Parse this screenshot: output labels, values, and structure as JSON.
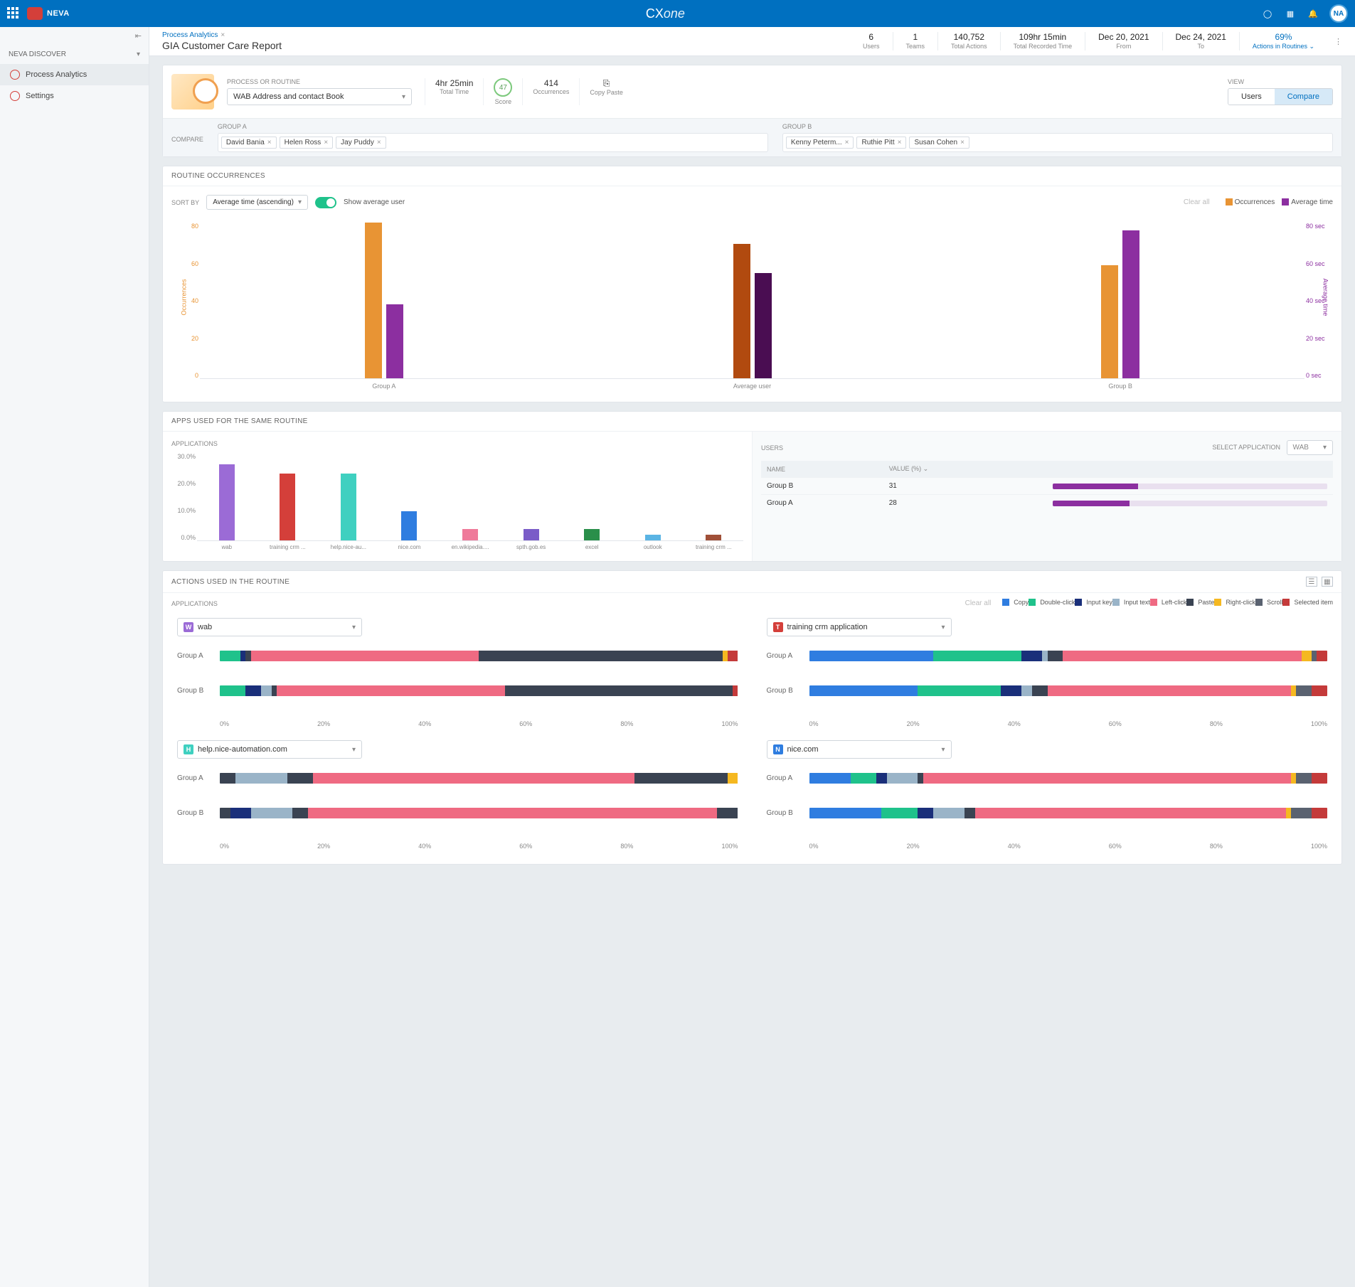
{
  "topbar": {
    "brand": "NEVA",
    "center_a": "CX",
    "center_b": "one",
    "avatar": "NA"
  },
  "sidebar": {
    "section": "NEVA DISCOVER",
    "items": [
      {
        "label": "Process Analytics",
        "active": true
      },
      {
        "label": "Settings",
        "active": false
      }
    ]
  },
  "header": {
    "breadcrumb": "Process Analytics",
    "title": "GIA Customer Care Report",
    "metrics": [
      {
        "val": "6",
        "lbl": "Users"
      },
      {
        "val": "1",
        "lbl": "Teams"
      },
      {
        "val": "140,752",
        "lbl": "Total Actions"
      },
      {
        "val": "109hr 15min",
        "lbl": "Total Recorded Time"
      },
      {
        "val": "Dec 20, 2021",
        "lbl": "From"
      },
      {
        "val": "Dec 24, 2021",
        "lbl": "To"
      },
      {
        "val": "69%",
        "lbl": "Actions in Routines ⌄",
        "link": true
      }
    ]
  },
  "filter": {
    "proc_lbl": "PROCESS OR ROUTINE",
    "proc_val": "WAB Address and contact Book",
    "mini": [
      {
        "v": "4hr 25min",
        "l": "Total Time"
      },
      {
        "v": "47",
        "l": "Score",
        "ring": true
      },
      {
        "v": "414",
        "l": "Occurrences"
      },
      {
        "v": "",
        "l": "Copy Paste",
        "icon": true
      }
    ],
    "view_lbl": "VIEW",
    "view_opts": [
      "Users",
      "Compare"
    ],
    "view_active": 1
  },
  "compare": {
    "lbl": "COMPARE",
    "group_a_lbl": "GROUP A",
    "group_b_lbl": "GROUP B",
    "group_a": [
      "David Bania",
      "Helen Ross",
      "Jay Puddy"
    ],
    "group_b": [
      "Kenny Peterm...",
      "Ruthie Pitt",
      "Susan Cohen"
    ]
  },
  "routine": {
    "title": "ROUTINE OCCURRENCES",
    "sortby_lbl": "SORT BY",
    "sortby_val": "Average time (ascending)",
    "toggle_lbl": "Show average user",
    "clear": "Clear all",
    "legend": [
      {
        "label": "Occurrences",
        "color": "#e89434"
      },
      {
        "label": "Average time",
        "color": "#8c2fa0"
      }
    ],
    "y_left": [
      "80",
      "60",
      "40",
      "20",
      "0"
    ],
    "y_right": [
      "80 sec",
      "60 sec",
      "40 sec",
      "20 sec",
      "0 sec"
    ],
    "y_left_lbl": "Occurrences",
    "y_right_lbl": "Average time",
    "max_occ": 80,
    "max_time": 80,
    "groups": [
      {
        "label": "Group A",
        "occ": 80,
        "time": 38,
        "occ_color": "#e89434",
        "time_color": "#8c2fa0"
      },
      {
        "label": "Average user",
        "occ": 69,
        "time": 54,
        "occ_color": "#b14a0f",
        "time_color": "#4a0d52"
      },
      {
        "label": "Group B",
        "occ": 58,
        "time": 76,
        "occ_color": "#e89434",
        "time_color": "#8c2fa0"
      }
    ]
  },
  "apps": {
    "title": "APPS USED FOR THE SAME ROUTINE",
    "left_lbl": "APPLICATIONS",
    "right_lbl": "USERS",
    "select_lbl": "SELECT APPLICATION",
    "select_val": "wab",
    "y": [
      "30.0%",
      "20.0%",
      "10.0%",
      "0.0%"
    ],
    "ymax": 30,
    "bars": [
      {
        "label": "wab",
        "val": 26,
        "color": "#9b6bd6"
      },
      {
        "label": "training crm ...",
        "val": 23,
        "color": "#d43f3a"
      },
      {
        "label": "help.nice-au...",
        "val": 23,
        "color": "#3fd0c0"
      },
      {
        "label": "nice.com",
        "val": 10,
        "color": "#2f7de0"
      },
      {
        "label": "en.wikipedia....",
        "val": 4,
        "color": "#ef7a9a"
      },
      {
        "label": "spth.gob.es",
        "val": 4,
        "color": "#7a5cc8"
      },
      {
        "label": "excel",
        "val": 4,
        "color": "#2a8f4a"
      },
      {
        "label": "outlook",
        "val": 2,
        "color": "#5ab4e4"
      },
      {
        "label": "training crm ...",
        "val": 2,
        "color": "#a05038"
      }
    ],
    "users_cols": [
      "NAME",
      "VALUE (%)"
    ],
    "users_rows": [
      {
        "name": "Group B",
        "val": 31
      },
      {
        "name": "Group A",
        "val": 28
      }
    ],
    "users_bar_color": "#8c2fa0",
    "users_bar_bg": "#e9e0ef"
  },
  "actions": {
    "title": "ACTIONS USED IN THE ROUTINE",
    "app_lbl": "APPLICATIONS",
    "clear": "Clear all",
    "legend": [
      {
        "label": "Copy",
        "color": "#2f7de0"
      },
      {
        "label": "Double-click",
        "color": "#1fc28b"
      },
      {
        "label": "Input key",
        "color": "#1a2f7a"
      },
      {
        "label": "Input text",
        "color": "#9ab4c8"
      },
      {
        "label": "Left-click",
        "color": "#ef6a82"
      },
      {
        "label": "Paste",
        "color": "#3a4352"
      },
      {
        "label": "Right-click",
        "color": "#f5b820"
      },
      {
        "label": "Scroll",
        "color": "#5a6270"
      },
      {
        "label": "Selected item",
        "color": "#c43a3a"
      }
    ],
    "pct_ticks": [
      "0%",
      "20%",
      "40%",
      "60%",
      "80%",
      "100%"
    ],
    "blocks": [
      {
        "app": "wab",
        "app_color": "#9b6bd6",
        "app_letter": "W",
        "rows": [
          {
            "label": "Group A",
            "segs": [
              [
                "#1fc28b",
                4
              ],
              [
                "#1a2f7a",
                1
              ],
              [
                "#3a4352",
                1
              ],
              [
                "#ef6a82",
                44
              ],
              [
                "#3a4352",
                47
              ],
              [
                "#f5b820",
                1
              ],
              [
                "#c43a3a",
                2
              ]
            ]
          },
          {
            "label": "Group B",
            "segs": [
              [
                "#1fc28b",
                5
              ],
              [
                "#1a2f7a",
                3
              ],
              [
                "#9ab4c8",
                2
              ],
              [
                "#3a4352",
                1
              ],
              [
                "#ef6a82",
                44
              ],
              [
                "#3a4352",
                44
              ],
              [
                "#c43a3a",
                1
              ]
            ]
          }
        ]
      },
      {
        "app": "training crm application",
        "app_color": "#d43f3a",
        "app_letter": "T",
        "rows": [
          {
            "label": "Group A",
            "segs": [
              [
                "#2f7de0",
                24
              ],
              [
                "#1fc28b",
                17
              ],
              [
                "#1a2f7a",
                4
              ],
              [
                "#9ab4c8",
                1
              ],
              [
                "#3a4352",
                3
              ],
              [
                "#ef6a82",
                46
              ],
              [
                "#f5b820",
                2
              ],
              [
                "#5a6270",
                1
              ],
              [
                "#c43a3a",
                2
              ]
            ]
          },
          {
            "label": "Group B",
            "segs": [
              [
                "#2f7de0",
                21
              ],
              [
                "#1fc28b",
                16
              ],
              [
                "#1a2f7a",
                4
              ],
              [
                "#9ab4c8",
                2
              ],
              [
                "#3a4352",
                3
              ],
              [
                "#ef6a82",
                47
              ],
              [
                "#f5b820",
                1
              ],
              [
                "#5a6270",
                3
              ],
              [
                "#c43a3a",
                3
              ]
            ]
          }
        ]
      },
      {
        "app": "help.nice-automation.com",
        "app_color": "#3fd0c0",
        "app_letter": "H",
        "rows": [
          {
            "label": "Group A",
            "segs": [
              [
                "#3a4352",
                3
              ],
              [
                "#9ab4c8",
                10
              ],
              [
                "#3a4352",
                5
              ],
              [
                "#ef6a82",
                62
              ],
              [
                "#3a4352",
                18
              ],
              [
                "#f5b820",
                2
              ]
            ]
          },
          {
            "label": "Group B",
            "segs": [
              [
                "#3a4352",
                2
              ],
              [
                "#1a2f7a",
                4
              ],
              [
                "#9ab4c8",
                8
              ],
              [
                "#3a4352",
                3
              ],
              [
                "#ef6a82",
                79
              ],
              [
                "#3a4352",
                4
              ]
            ]
          }
        ]
      },
      {
        "app": "nice.com",
        "app_color": "#2f7de0",
        "app_letter": "N",
        "rows": [
          {
            "label": "Group A",
            "segs": [
              [
                "#2f7de0",
                8
              ],
              [
                "#1fc28b",
                5
              ],
              [
                "#1a2f7a",
                2
              ],
              [
                "#9ab4c8",
                6
              ],
              [
                "#3a4352",
                1
              ],
              [
                "#ef6a82",
                71
              ],
              [
                "#f5b820",
                1
              ],
              [
                "#5a6270",
                3
              ],
              [
                "#c43a3a",
                3
              ]
            ]
          },
          {
            "label": "Group B",
            "segs": [
              [
                "#2f7de0",
                14
              ],
              [
                "#1fc28b",
                7
              ],
              [
                "#1a2f7a",
                3
              ],
              [
                "#9ab4c8",
                6
              ],
              [
                "#3a4352",
                2
              ],
              [
                "#ef6a82",
                60
              ],
              [
                "#f5b820",
                1
              ],
              [
                "#5a6270",
                4
              ],
              [
                "#c43a3a",
                3
              ]
            ]
          }
        ]
      }
    ]
  }
}
